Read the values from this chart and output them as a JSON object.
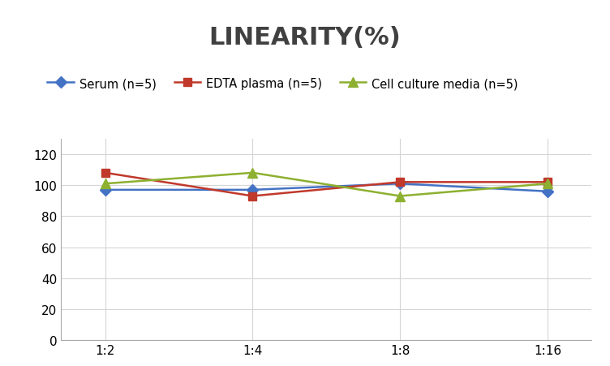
{
  "title": "LINEARITY(%)",
  "title_fontsize": 22,
  "title_fontweight": "bold",
  "x_labels": [
    "1:2",
    "1:4",
    "1:8",
    "1:16"
  ],
  "x_positions": [
    0,
    1,
    2,
    3
  ],
  "series": [
    {
      "label": "Serum (n=5)",
      "values": [
        97,
        97,
        101,
        96
      ],
      "color": "#4472c4",
      "marker": "D",
      "marker_size": 7,
      "linewidth": 1.8
    },
    {
      "label": "EDTA plasma (n=5)",
      "values": [
        108,
        93,
        102,
        102
      ],
      "color": "#c0392b",
      "marker": "s",
      "marker_size": 7,
      "linewidth": 1.8
    },
    {
      "label": "Cell culture media (n=5)",
      "values": [
        101,
        108,
        93,
        101
      ],
      "color": "#8db030",
      "marker": "^",
      "marker_size": 8,
      "linewidth": 1.8
    }
  ],
  "ylim": [
    0,
    130
  ],
  "yticks": [
    0,
    20,
    40,
    60,
    80,
    100,
    120
  ],
  "grid_color": "#d5d5d5",
  "background_color": "#ffffff",
  "legend_fontsize": 10.5,
  "tick_fontsize": 11,
  "title_color": "#404040"
}
